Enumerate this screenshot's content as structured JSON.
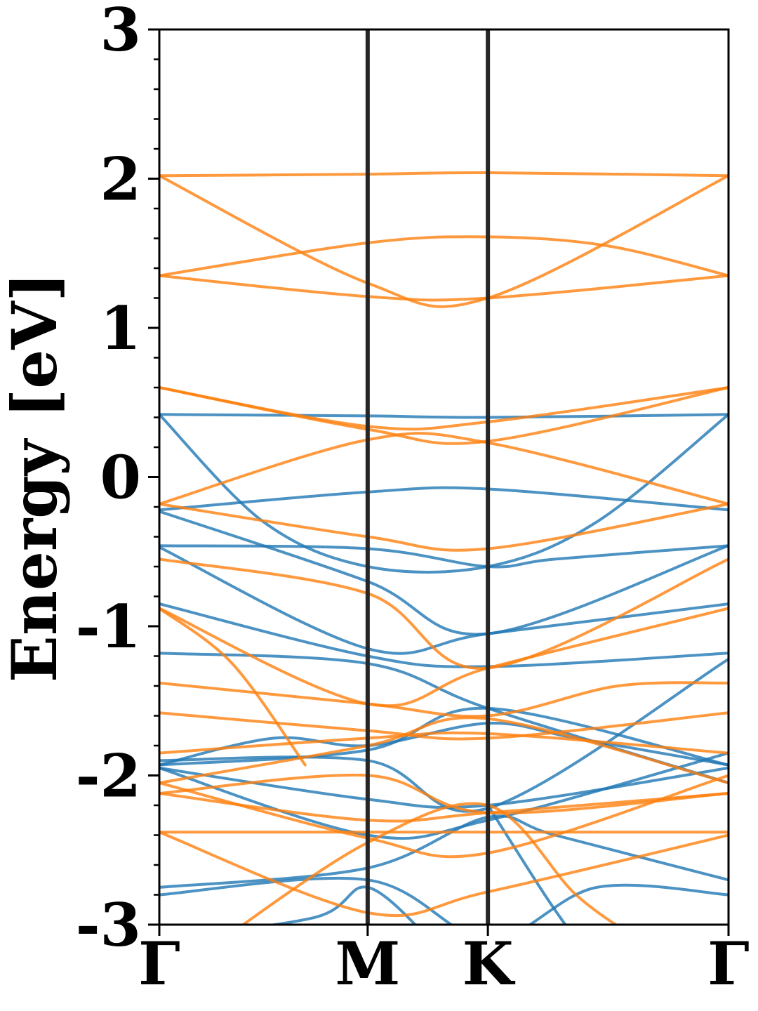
{
  "chart_data": {
    "type": "line",
    "xlabel": "",
    "ylabel": "Energy [eV]",
    "ylim": [
      -3,
      3
    ],
    "yticks": [
      3,
      2,
      1,
      0,
      -1,
      -2,
      -3
    ],
    "ytick_labels": [
      "3",
      "2",
      "1",
      "0",
      "-1",
      "-2",
      "-3"
    ],
    "xlim": [
      0,
      2.732
    ],
    "high_symmetry_points": [
      {
        "label": "Γ",
        "x": 0
      },
      {
        "label": "M",
        "x": 1.0
      },
      {
        "label": "K",
        "x": 1.577
      },
      {
        "label": "Γ",
        "x": 2.732
      }
    ],
    "grid": false,
    "legend": "none",
    "colors": {
      "spin_up": "#1f77b4",
      "spin_down": "#ff7f0e",
      "divider": "#262626"
    },
    "series": [
      {
        "color": "#1f77b4",
        "x": [
          0,
          1.0,
          1.577,
          2.732
        ],
        "y": [
          0.42,
          0.41,
          0.4,
          0.42
        ]
      },
      {
        "color": "#1f77b4",
        "x": [
          0,
          1.0,
          1.577,
          2.732
        ],
        "y": [
          -0.22,
          -0.1,
          -0.08,
          -0.22
        ]
      },
      {
        "color": "#1f77b4",
        "x": [
          0,
          0.5,
          1.0,
          1.577,
          2.1,
          2.732
        ],
        "y": [
          0.42,
          -0.3,
          -0.6,
          -0.6,
          -0.3,
          0.42
        ]
      },
      {
        "color": "#1f77b4",
        "x": [
          0,
          1.0,
          1.577,
          1.9,
          2.732
        ],
        "y": [
          -0.46,
          -0.48,
          -0.6,
          -0.55,
          -0.46
        ]
      },
      {
        "color": "#1f77b4",
        "x": [
          0,
          1.0,
          1.577,
          2.732
        ],
        "y": [
          -0.23,
          -0.7,
          -1.05,
          -0.46
        ]
      },
      {
        "color": "#1f77b4",
        "x": [
          0,
          1.0,
          1.577,
          2.732
        ],
        "y": [
          -0.47,
          -1.15,
          -1.05,
          -0.85
        ]
      },
      {
        "color": "#1f77b4",
        "x": [
          0,
          1.0,
          1.577,
          2.732
        ],
        "y": [
          -0.85,
          -1.2,
          -1.27,
          -1.18
        ]
      },
      {
        "color": "#1f77b4",
        "x": [
          0,
          1.0,
          1.577,
          2.732
        ],
        "y": [
          -1.18,
          -1.25,
          -1.55,
          -2.05
        ]
      },
      {
        "color": "#1f77b4",
        "x": [
          0,
          1.0,
          1.577,
          2.732
        ],
        "y": [
          -1.93,
          -1.83,
          -1.55,
          -1.93
        ]
      },
      {
        "color": "#1f77b4",
        "x": [
          0,
          0.55,
          1.0,
          1.577,
          2.0,
          2.732
        ],
        "y": [
          -1.93,
          -1.75,
          -1.8,
          -1.65,
          -1.75,
          -1.93
        ]
      },
      {
        "color": "#1f77b4",
        "x": [
          0,
          1.0,
          1.577,
          2.732
        ],
        "y": [
          -1.9,
          -1.9,
          -2.22,
          -1.22
        ]
      },
      {
        "color": "#1f77b4",
        "x": [
          0,
          1.0,
          1.577,
          2.732
        ],
        "y": [
          -1.95,
          -2.16,
          -2.2,
          -1.95
        ]
      },
      {
        "color": "#1f77b4",
        "x": [
          0,
          1.0,
          1.577,
          2.732
        ],
        "y": [
          -1.95,
          -2.4,
          -2.3,
          -1.85
        ]
      },
      {
        "color": "#1f77b4",
        "x": [
          0,
          1.0,
          1.577,
          1.9,
          2.732
        ],
        "y": [
          -2.75,
          -2.62,
          -2.28,
          -2.4,
          -2.7
        ]
      },
      {
        "color": "#1f77b4",
        "x": [
          0,
          1.0,
          1.577,
          2.1,
          2.732
        ],
        "y": [
          -2.8,
          -2.7,
          -3.1,
          -2.75,
          -2.8
        ]
      },
      {
        "color": "#1f77b4",
        "x": [
          0,
          0.75,
          1.0,
          1.3
        ],
        "y": [
          -3.1,
          -2.95,
          -2.75,
          -3.1
        ]
      },
      {
        "color": "#1f77b4",
        "x": [
          1.577,
          1.85,
          2.0
        ],
        "y": [
          -2.2,
          -2.8,
          -3.1
        ]
      },
      {
        "color": "#ff7f0e",
        "x": [
          0,
          1.0,
          1.577,
          2.732
        ],
        "y": [
          2.02,
          2.03,
          2.04,
          2.02
        ]
      },
      {
        "color": "#ff7f0e",
        "x": [
          0,
          1.0,
          1.577,
          2.732
        ],
        "y": [
          2.02,
          1.3,
          1.2,
          2.02
        ]
      },
      {
        "color": "#ff7f0e",
        "x": [
          0,
          1.0,
          1.577,
          2.15,
          2.732
        ],
        "y": [
          1.35,
          1.57,
          1.61,
          1.55,
          1.35
        ]
      },
      {
        "color": "#ff7f0e",
        "x": [
          0,
          1.0,
          1.577,
          2.732
        ],
        "y": [
          1.35,
          1.21,
          1.2,
          1.35
        ]
      },
      {
        "color": "#ff7f0e",
        "x": [
          0,
          1.0,
          1.577,
          2.732
        ],
        "y": [
          0.6,
          0.32,
          0.24,
          0.6
        ]
      },
      {
        "color": "#ff7f0e",
        "x": [
          0,
          1.0,
          1.577,
          2.732
        ],
        "y": [
          0.6,
          0.34,
          0.37,
          0.6
        ]
      },
      {
        "color": "#ff7f0e",
        "x": [
          0,
          1.0,
          1.577,
          2.732
        ],
        "y": [
          -0.18,
          0.25,
          0.23,
          -0.18
        ]
      },
      {
        "color": "#ff7f0e",
        "x": [
          0,
          1.0,
          1.577,
          2.732
        ],
        "y": [
          -0.18,
          -0.4,
          -0.48,
          -0.18
        ]
      },
      {
        "color": "#ff7f0e",
        "x": [
          0,
          1.0,
          1.577,
          2.732
        ],
        "y": [
          -0.55,
          -0.78,
          -1.28,
          -0.55
        ]
      },
      {
        "color": "#ff7f0e",
        "x": [
          0,
          1.0,
          1.577,
          2.732
        ],
        "y": [
          -0.88,
          -1.52,
          -1.28,
          -0.88
        ]
      },
      {
        "color": "#ff7f0e",
        "x": [
          0,
          1.0,
          1.577,
          2.2,
          2.732
        ],
        "y": [
          -1.38,
          -1.52,
          -1.6,
          -1.4,
          -1.38
        ]
      },
      {
        "color": "#ff7f0e",
        "x": [
          0,
          1.0,
          1.577,
          2.732
        ],
        "y": [
          -1.58,
          -1.7,
          -1.75,
          -1.58
        ]
      },
      {
        "color": "#ff7f0e",
        "x": [
          0,
          1.0,
          1.577,
          2.732
        ],
        "y": [
          -1.85,
          -1.75,
          -1.72,
          -1.85
        ]
      },
      {
        "color": "#ff7f0e",
        "x": [
          0,
          1.0,
          1.577,
          2.732
        ],
        "y": [
          -2.05,
          -1.8,
          -1.62,
          -2.05
        ]
      },
      {
        "color": "#ff7f0e",
        "x": [
          0,
          1.0,
          1.577,
          2.732
        ],
        "y": [
          -2.12,
          -2.0,
          -2.25,
          -2.12
        ]
      },
      {
        "color": "#ff7f0e",
        "x": [
          0,
          1.0,
          1.577,
          2.732
        ],
        "y": [
          -2.12,
          -2.3,
          -2.25,
          -2.12
        ]
      },
      {
        "color": "#ff7f0e",
        "x": [
          0,
          1.0,
          1.577,
          2.732
        ],
        "y": [
          -2.38,
          -2.38,
          -2.38,
          -2.38
        ]
      },
      {
        "color": "#ff7f0e",
        "x": [
          0,
          1.0,
          1.577,
          2.732
        ],
        "y": [
          -2.38,
          -2.92,
          -2.78,
          -2.4
        ]
      },
      {
        "color": "#ff7f0e",
        "x": [
          0,
          1.0,
          1.577,
          2.732
        ],
        "y": [
          -2.05,
          -2.42,
          -2.52,
          -2.0
        ]
      },
      {
        "color": "#ff7f0e",
        "x": [
          0.3,
          1.0,
          1.577,
          2.0,
          2.3
        ],
        "y": [
          -3.1,
          -2.45,
          -2.2,
          -2.8,
          -3.1
        ]
      },
      {
        "color": "#ff7f0e",
        "x": [
          0,
          0.35,
          0.7
        ],
        "y": [
          -0.88,
          -1.25,
          -1.93
        ]
      }
    ]
  }
}
